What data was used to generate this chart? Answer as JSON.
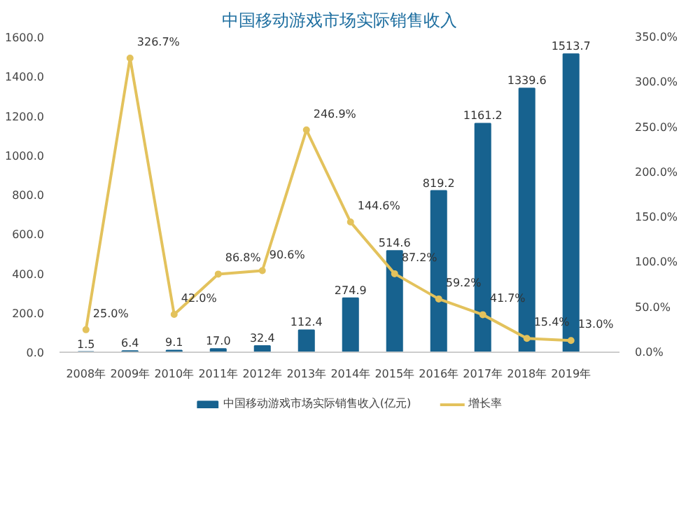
{
  "chart_data": {
    "type": "bar",
    "title": "中国移动游戏市场实际销售收入",
    "categories": [
      "2008年",
      "2009年",
      "2010年",
      "2011年",
      "2012年",
      "2013年",
      "2014年",
      "2015年",
      "2016年",
      "2017年",
      "2018年",
      "2019年"
    ],
    "series": [
      {
        "name": "中国移动游戏市场实际销售收入(亿元)",
        "color": "#17628f",
        "values": [
          1.5,
          6.4,
          9.1,
          17.0,
          32.4,
          112.4,
          274.9,
          514.6,
          819.2,
          1161.2,
          1339.6,
          1513.7
        ],
        "value_labels": [
          "1.5",
          "6.4",
          "9.1",
          "17.0",
          "32.4",
          "112.4",
          "274.9",
          "514.6",
          "819.2",
          "1161.2",
          "1339.6",
          "1513.7"
        ]
      },
      {
        "name": "增长率",
        "type": "line",
        "axis": "y2",
        "color": "#e3c25c",
        "marker": "circle",
        "values": [
          25.0,
          326.7,
          42.0,
          86.8,
          90.6,
          246.9,
          144.6,
          87.2,
          59.2,
          41.7,
          15.4,
          13.0
        ],
        "value_labels": [
          "25.0%",
          "326.7%",
          "42.0%",
          "86.8%",
          "90.6%",
          "246.9%",
          "144.6%",
          "87.2%",
          "59.2%",
          "41.7%",
          "15.4%",
          "13.0%"
        ]
      }
    ],
    "ylim": [
      0,
      1600
    ],
    "yticks": [
      {
        "value": 0,
        "label": "0.0"
      },
      {
        "value": 200,
        "label": "200.0"
      },
      {
        "value": 400,
        "label": "400.0"
      },
      {
        "value": 600,
        "label": "600.0"
      },
      {
        "value": 800,
        "label": "800.0"
      },
      {
        "value": 1000,
        "label": "1000.0"
      },
      {
        "value": 1200,
        "label": "1200.0"
      },
      {
        "value": 1400,
        "label": "1400.0"
      },
      {
        "value": 1600,
        "label": "1600.0"
      }
    ],
    "y2lim": [
      0,
      350
    ],
    "y2ticks": [
      {
        "value": 0,
        "label": "0.0%"
      },
      {
        "value": 50,
        "label": "50.0%"
      },
      {
        "value": 100,
        "label": "100.0%"
      },
      {
        "value": 150,
        "label": "150.0%"
      },
      {
        "value": 200,
        "label": "200.0%"
      },
      {
        "value": 250,
        "label": "250.0%"
      },
      {
        "value": 300,
        "label": "300.0%"
      },
      {
        "value": 350,
        "label": "350.0%"
      }
    ],
    "legend": "bottom"
  }
}
